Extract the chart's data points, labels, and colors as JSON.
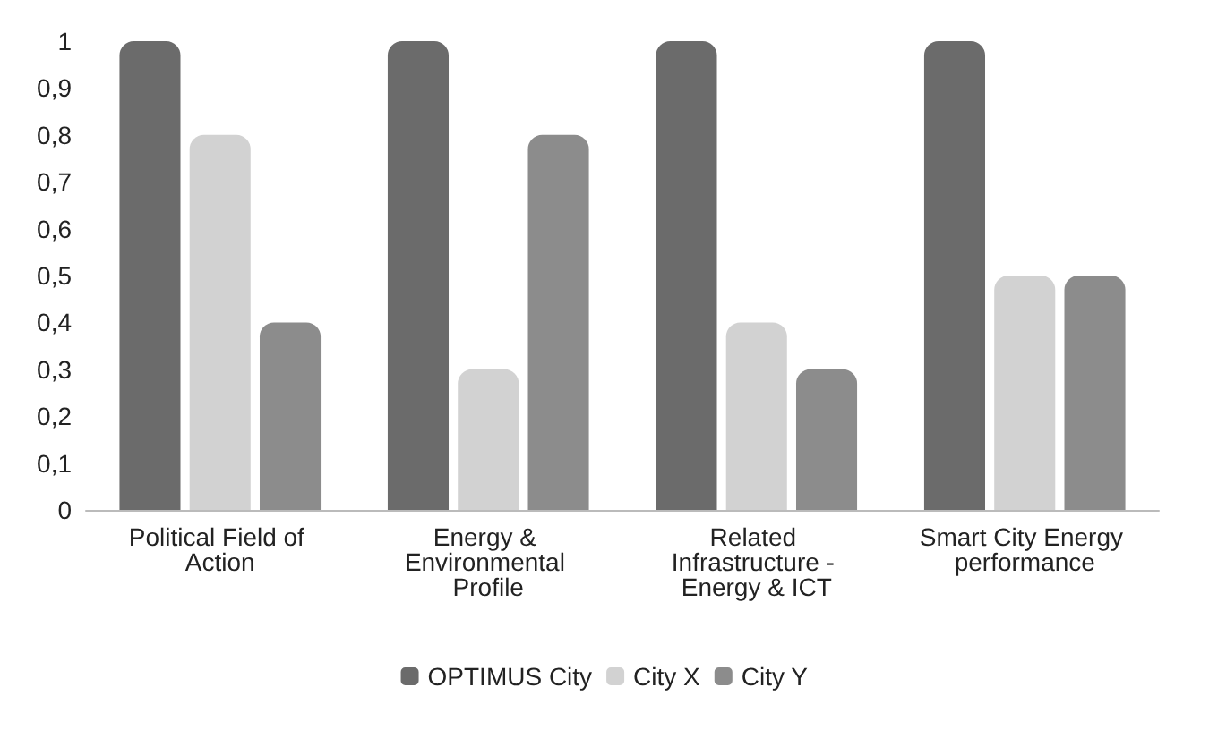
{
  "chart_data": {
    "type": "bar",
    "categories": [
      "Political Field of Action",
      "Energy & Environmental Profile",
      "Related Infrastructure - Energy & ICT",
      "Smart City Energy performance"
    ],
    "series": [
      {
        "name": "OPTIMUS City",
        "color": "#6b6b6b",
        "values": [
          1,
          1,
          1,
          1
        ]
      },
      {
        "name": "City X",
        "color": "#d2d2d2",
        "values": [
          0.8,
          0.3,
          0.4,
          0.5
        ]
      },
      {
        "name": "City Y",
        "color": "#8c8c8c",
        "values": [
          0.4,
          0.8,
          0.3,
          0.5
        ]
      }
    ],
    "ylim": [
      0,
      1
    ],
    "yticks": [
      0,
      {
        "value": 0.1,
        "label": "0,1"
      },
      {
        "value": 0.2,
        "label": "0,2"
      },
      {
        "value": 0.3,
        "label": "0,3"
      },
      {
        "value": 0.4,
        "label": "0,4"
      },
      {
        "value": 0.5,
        "label": "0,5"
      },
      {
        "value": 0.6,
        "label": "0,6"
      },
      {
        "value": 0.7,
        "label": "0,7"
      },
      {
        "value": 0.8,
        "label": "0,8"
      },
      {
        "value": 0.9,
        "label": "0,9"
      },
      1
    ],
    "grid": false,
    "legend": "bottom"
  }
}
